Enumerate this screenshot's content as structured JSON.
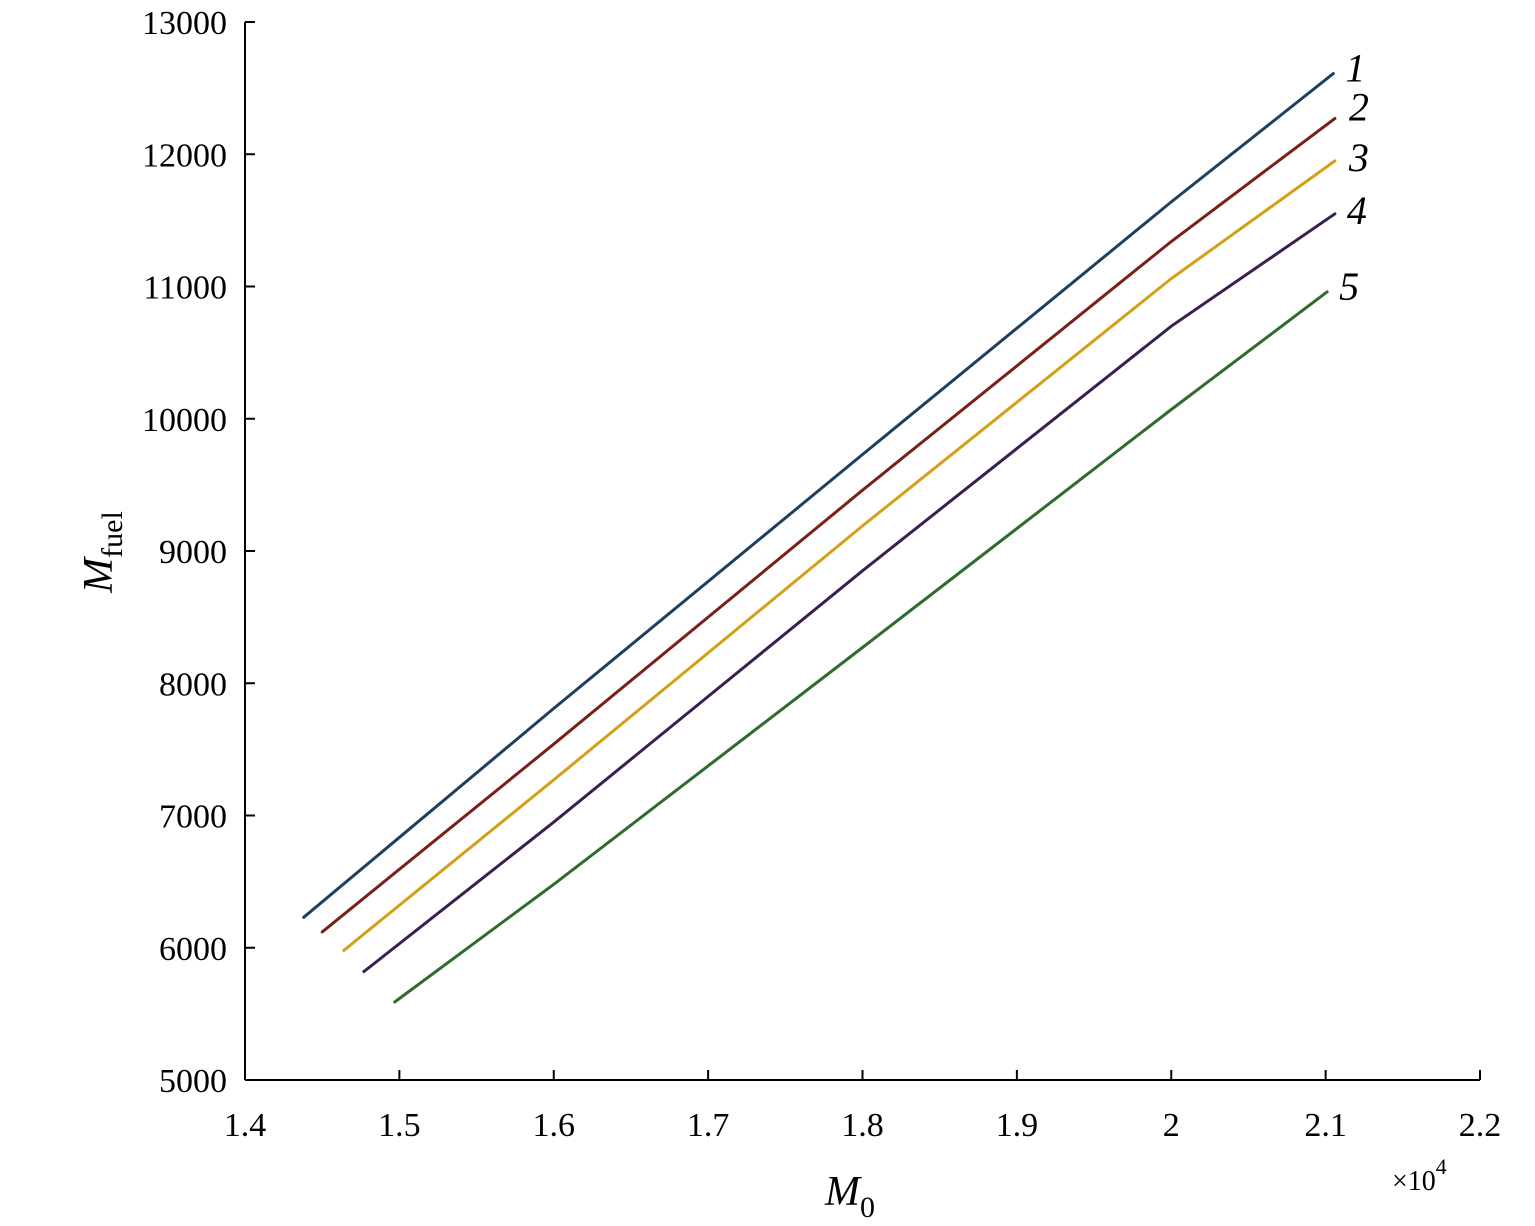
{
  "chart_data": {
    "type": "line",
    "title": "",
    "xlabel": "M",
    "xlabel_subscript": "0",
    "ylabel": "M",
    "ylabel_subscript": "fuel",
    "x_multiplier_label": "×10",
    "x_multiplier_exponent": "4",
    "xlim": [
      1.4,
      2.2
    ],
    "ylim": [
      5000,
      13000
    ],
    "x_ticks": [
      1.4,
      1.5,
      1.6,
      1.7,
      1.8,
      1.9,
      2.0,
      2.1,
      2.2
    ],
    "x_tick_labels": [
      "1.4",
      "1.5",
      "1.6",
      "1.7",
      "1.8",
      "1.9",
      "2",
      "2.1",
      "2.2"
    ],
    "y_ticks": [
      5000,
      6000,
      7000,
      8000,
      9000,
      10000,
      11000,
      12000,
      13000
    ],
    "y_tick_labels": [
      "5000",
      "6000",
      "7000",
      "8000",
      "9000",
      "10000",
      "11000",
      "12000",
      "13000"
    ],
    "grid": false,
    "series": [
      {
        "name": "1",
        "color": "#1f3f5f",
        "x": [
          1.438,
          1.6,
          1.8,
          2.0,
          2.105
        ],
        "y": [
          6230,
          7810,
          9730,
          11640,
          12610
        ]
      },
      {
        "name": "2",
        "color": "#7a1f1a",
        "x": [
          1.45,
          1.6,
          1.8,
          2.0,
          2.106
        ],
        "y": [
          6120,
          7540,
          9460,
          11340,
          12270
        ]
      },
      {
        "name": "3",
        "color": "#d4a017",
        "x": [
          1.464,
          1.6,
          1.8,
          2.0,
          2.106
        ],
        "y": [
          5980,
          7270,
          9190,
          11060,
          11950
        ]
      },
      {
        "name": "4",
        "color": "#3b1f4f",
        "x": [
          1.477,
          1.6,
          1.8,
          2.0,
          2.106
        ],
        "y": [
          5820,
          6950,
          8850,
          10700,
          11550
        ]
      },
      {
        "name": "5",
        "color": "#2e6b2e",
        "x": [
          1.497,
          1.6,
          1.8,
          2.0,
          2.101
        ],
        "y": [
          5590,
          6480,
          8270,
          10070,
          10960
        ]
      }
    ]
  }
}
